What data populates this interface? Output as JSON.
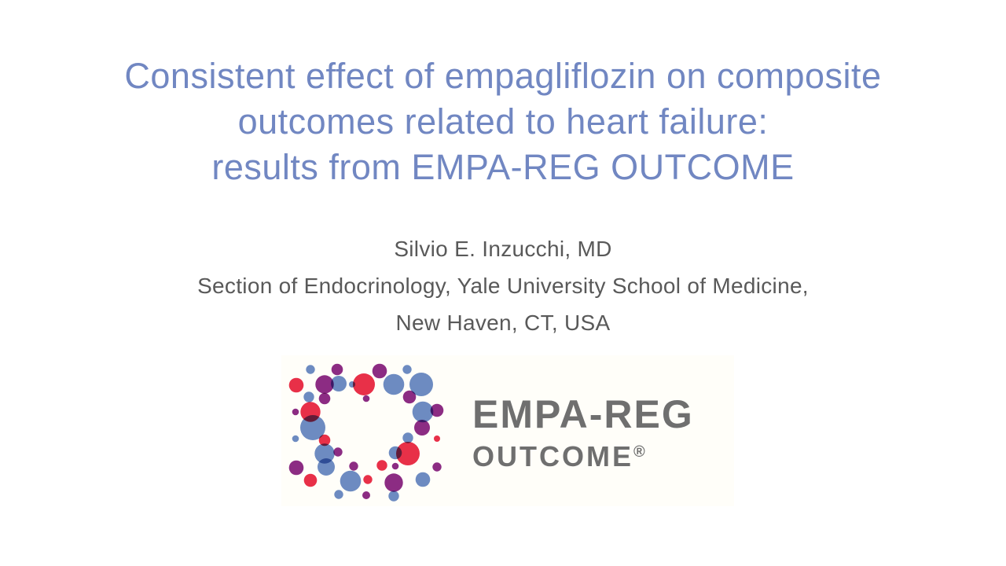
{
  "slide": {
    "title_lines": [
      "Consistent effect of empagliflozin on composite",
      "outcomes related to heart failure:",
      "results from EMPA-REG OUTCOME"
    ],
    "author": "Silvio E. Inzucchi, MD",
    "affiliation_line1": "Section of Endocrinology, Yale University School of Medicine,",
    "affiliation_line2": "New Haven, CT, USA",
    "colors": {
      "title_text": "#7187C2",
      "body_text": "#595959",
      "logo_text": "#6F6F6F",
      "logo_background": "#FFFEF9",
      "dot_blue": "#6D8CC6",
      "dot_red": "#E8304A",
      "dot_purple": "#8C2C86"
    },
    "logo": {
      "wordmark_line1": "EMPA-REG",
      "wordmark_line2": "OUTCOME",
      "registered_mark": "®",
      "dots": [
        [
          19,
          38,
          9.3,
          "r"
        ],
        [
          37,
          18,
          5.7,
          "b"
        ],
        [
          71,
          18,
          7.3,
          "p"
        ],
        [
          55,
          37,
          11.7,
          "p"
        ],
        [
          73,
          36,
          10,
          "b"
        ],
        [
          105,
          37,
          14,
          "r"
        ],
        [
          90,
          37,
          4,
          "b"
        ],
        [
          125,
          20,
          9.3,
          "p"
        ],
        [
          143,
          37,
          13.3,
          "b"
        ],
        [
          160,
          18,
          5.7,
          "b"
        ],
        [
          178,
          37,
          15,
          "b"
        ],
        [
          35,
          53,
          6.7,
          "b"
        ],
        [
          55,
          55,
          7.3,
          "p"
        ],
        [
          108,
          55,
          4.3,
          "p"
        ],
        [
          163,
          53,
          8.3,
          "p"
        ],
        [
          37,
          72,
          12.7,
          "r"
        ],
        [
          18,
          72,
          4.3,
          "p"
        ],
        [
          40,
          92,
          16,
          "b"
        ],
        [
          180,
          72,
          13.3,
          "b"
        ],
        [
          198,
          70,
          8.3,
          "p"
        ],
        [
          179,
          92,
          10,
          "p"
        ],
        [
          18,
          106,
          4.3,
          "b"
        ],
        [
          55,
          108,
          7.3,
          "r"
        ],
        [
          161,
          105,
          6.7,
          "b"
        ],
        [
          198,
          106,
          4,
          "r"
        ],
        [
          55,
          125,
          12.7,
          "b"
        ],
        [
          72,
          123,
          5.7,
          "p"
        ],
        [
          161,
          125,
          15,
          "r"
        ],
        [
          145,
          124,
          8.3,
          "b"
        ],
        [
          19,
          143,
          9.3,
          "p"
        ],
        [
          57,
          142,
          11,
          "b"
        ],
        [
          92,
          141,
          5.7,
          "p"
        ],
        [
          128,
          140,
          6.7,
          "r"
        ],
        [
          145,
          141,
          4.3,
          "p"
        ],
        [
          198,
          142,
          5.7,
          "p"
        ],
        [
          37,
          159,
          8.3,
          "r"
        ],
        [
          88,
          160,
          13.3,
          "b"
        ],
        [
          110,
          158,
          5.7,
          "r"
        ],
        [
          143,
          162,
          11.7,
          "p"
        ],
        [
          180,
          158,
          9.3,
          "b"
        ],
        [
          73,
          177,
          5.7,
          "b"
        ],
        [
          108,
          178,
          5,
          "p"
        ],
        [
          143,
          179,
          6.7,
          "b"
        ]
      ]
    }
  }
}
